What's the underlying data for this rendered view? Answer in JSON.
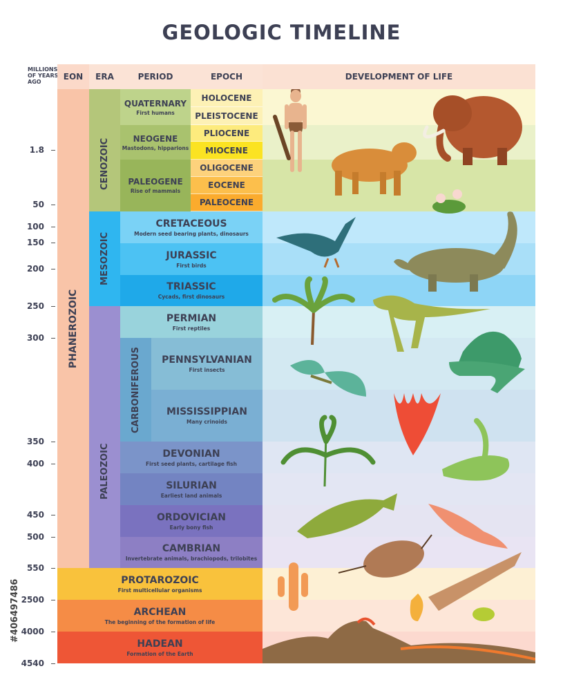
{
  "title": "GEOLOGIC TIMELINE",
  "headers": {
    "mya": "MILLIONS OF YEARS AGO",
    "eon": "EON",
    "era": "ERA",
    "period": "PERIOD",
    "epoch": "EPOCH",
    "life": "DEVELOPMENT OF LIFE"
  },
  "ticks": [
    "1.8",
    "50",
    "100",
    "150",
    "200",
    "250",
    "300",
    "350",
    "400",
    "450",
    "500",
    "550",
    "2500",
    "4000",
    "4540"
  ],
  "eons": {
    "phanerozoic": "PHANEROZOIC",
    "protarozoic": "PROTAROZOIC",
    "protarozoic_desc": "First multicellular organisms",
    "archean": "ARCHEAN",
    "archean_desc": "The beginning of the formation of life",
    "hadean": "HADEAN",
    "hadean_desc": "Formation of the Earth"
  },
  "eras": {
    "cenozoic": "CENOZOIC",
    "mesozoic": "MESOZOIC",
    "paleozoic": "PALEOZOIC"
  },
  "subperiod": "CARBONIFEROUS",
  "periods": {
    "quaternary": {
      "name": "QUATERNARY",
      "desc": "First humans"
    },
    "neogene": {
      "name": "NEOGENE",
      "desc": "Mastodons, hipparions"
    },
    "paleogene": {
      "name": "PALEOGENE",
      "desc": "Rise of mammals"
    },
    "cretaceous": {
      "name": "CRETACEOUS",
      "desc": "Modern seed bearing plants, dinosaurs"
    },
    "jurassic": {
      "name": "JURASSIC",
      "desc": "First birds"
    },
    "triassic": {
      "name": "TRIASSIC",
      "desc": "Cycads, first dinosaurs"
    },
    "permian": {
      "name": "PERMIAN",
      "desc": "First reptiles"
    },
    "pennsylvanian": {
      "name": "PENNSYLVANIAN",
      "desc": "First insects"
    },
    "mississippian": {
      "name": "MISSISSIPPIAN",
      "desc": "Many crinoids"
    },
    "devonian": {
      "name": "DEVONIAN",
      "desc": "First seed plants, cartilage fish"
    },
    "silurian": {
      "name": "SILURIAN",
      "desc": "Earliest land animals"
    },
    "ordovician": {
      "name": "ORDOVICIAN",
      "desc": "Early bony fish"
    },
    "cambrian": {
      "name": "CAMBRIAN",
      "desc": "Invertebrate animals, brachiopods, trilobites"
    }
  },
  "epochs": [
    "HOLOCENE",
    "PLEISTOCENE",
    "PLIOCENE",
    "MIOCENE",
    "OLIGOCENE",
    "EOCENE",
    "PALEOCENE"
  ],
  "stock_id": "#406497486",
  "colors": {
    "eon": "#f9c4a8",
    "cenozoic": "#b4c67a",
    "mesozoic": "#2fb6f0",
    "paleozoic": "#9b8fd0",
    "protarozoic": "#f9c23c",
    "archean": "#f58c46",
    "hadean": "#ee5636"
  }
}
